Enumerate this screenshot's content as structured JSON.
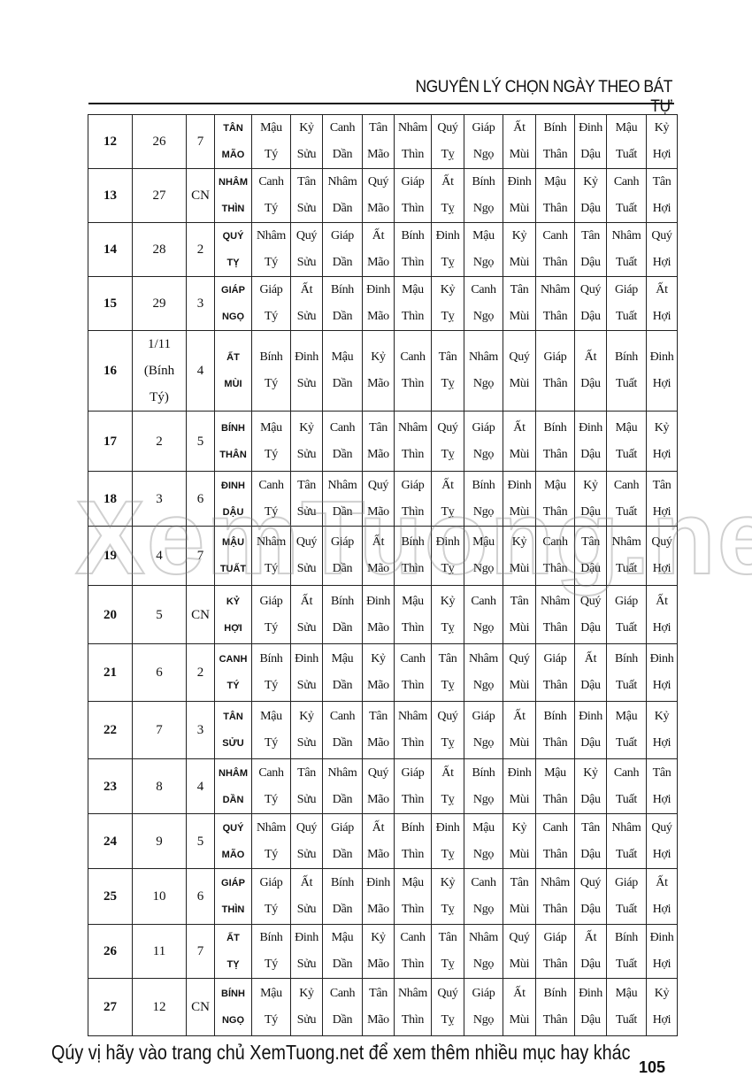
{
  "header": {
    "title": "NGUYÊN LÝ CHỌN NGÀY THEO BÁT TỰ"
  },
  "branches": [
    "Tý",
    "Sửu",
    "Dần",
    "Mão",
    "Thìn",
    "Tỵ",
    "Ngọ",
    "Mùi",
    "Thân",
    "Dậu",
    "Tuất",
    "Hợi"
  ],
  "rows": [
    {
      "day": "12",
      "lunar": "26",
      "weekday": "7",
      "can": "TÂN",
      "chi": "MÃO",
      "stems": [
        "Mậu",
        "Kỷ",
        "Canh",
        "Tân",
        "Nhâm",
        "Quý",
        "Giáp",
        "Ất",
        "Bính",
        "Đinh",
        "Mậu",
        "Kỷ"
      ]
    },
    {
      "day": "13",
      "lunar": "27",
      "weekday": "CN",
      "can": "NHÂM",
      "chi": "THÌN",
      "stems": [
        "Canh",
        "Tân",
        "Nhâm",
        "Quý",
        "Giáp",
        "Ất",
        "Bính",
        "Đinh",
        "Mậu",
        "Kỷ",
        "Canh",
        "Tân"
      ]
    },
    {
      "day": "14",
      "lunar": "28",
      "weekday": "2",
      "can": "QUÝ",
      "chi": "TỴ",
      "stems": [
        "Nhâm",
        "Quý",
        "Giáp",
        "Ất",
        "Bính",
        "Đinh",
        "Mậu",
        "Kỷ",
        "Canh",
        "Tân",
        "Nhâm",
        "Quý"
      ]
    },
    {
      "day": "15",
      "lunar": "29",
      "weekday": "3",
      "can": "GIÁP",
      "chi": "NGỌ",
      "stems": [
        "Giáp",
        "Ất",
        "Bính",
        "Đinh",
        "Mậu",
        "Kỷ",
        "Canh",
        "Tân",
        "Nhâm",
        "Quý",
        "Giáp",
        "Ất"
      ]
    },
    {
      "day": "16",
      "lunar": "1/11",
      "lunar2": "(Bính",
      "lunar3": "Tý)",
      "weekday": "4",
      "can": "ẤT",
      "chi": "MÙI",
      "stems": [
        "Bính",
        "Đinh",
        "Mậu",
        "Kỷ",
        "Canh",
        "Tân",
        "Nhâm",
        "Quý",
        "Giáp",
        "Ất",
        "Bính",
        "Đinh"
      ]
    },
    {
      "day": "17",
      "lunar": "2",
      "weekday": "5",
      "can": "BÍNH",
      "chi": "THÂN",
      "stems": [
        "Mậu",
        "Kỷ",
        "Canh",
        "Tân",
        "Nhâm",
        "Quý",
        "Giáp",
        "Ất",
        "Bính",
        "Đinh",
        "Mậu",
        "Kỷ"
      ]
    },
    {
      "day": "18",
      "lunar": "3",
      "weekday": "6",
      "can": "ĐINH",
      "chi": "DẬU",
      "stems": [
        "Canh",
        "Tân",
        "Nhâm",
        "Quý",
        "Giáp",
        "Ất",
        "Bính",
        "Đinh",
        "Mậu",
        "Kỷ",
        "Canh",
        "Tân"
      ]
    },
    {
      "day": "19",
      "lunar": "4",
      "weekday": "7",
      "can": "MẬU",
      "chi": "TUẤT",
      "stems": [
        "Nhâm",
        "Quý",
        "Giáp",
        "Ất",
        "Bính",
        "Đinh",
        "Mậu",
        "Kỷ",
        "Canh",
        "Tân",
        "Nhâm",
        "Quý"
      ]
    },
    {
      "day": "20",
      "lunar": "5",
      "weekday": "CN",
      "can": "KỶ",
      "chi": "HỢI",
      "stems": [
        "Giáp",
        "Ất",
        "Bính",
        "Đinh",
        "Mậu",
        "Kỷ",
        "Canh",
        "Tân",
        "Nhâm",
        "Quý",
        "Giáp",
        "Ất"
      ]
    },
    {
      "day": "21",
      "lunar": "6",
      "weekday": "2",
      "can": "CANH",
      "chi": "TÝ",
      "stems": [
        "Bính",
        "Đinh",
        "Mậu",
        "Kỷ",
        "Canh",
        "Tân",
        "Nhâm",
        "Quý",
        "Giáp",
        "Ất",
        "Bính",
        "Đinh"
      ]
    },
    {
      "day": "22",
      "lunar": "7",
      "weekday": "3",
      "can": "TÂN",
      "chi": "SỬU",
      "stems": [
        "Mậu",
        "Kỷ",
        "Canh",
        "Tân",
        "Nhâm",
        "Quý",
        "Giáp",
        "Ất",
        "Bính",
        "Đinh",
        "Mậu",
        "Kỷ"
      ]
    },
    {
      "day": "23",
      "lunar": "8",
      "weekday": "4",
      "can": "NHÂM",
      "chi": "DẦN",
      "stems": [
        "Canh",
        "Tân",
        "Nhâm",
        "Quý",
        "Giáp",
        "Ất",
        "Bính",
        "Đinh",
        "Mậu",
        "Kỷ",
        "Canh",
        "Tân"
      ]
    },
    {
      "day": "24",
      "lunar": "9",
      "weekday": "5",
      "can": "QUÝ",
      "chi": "MÃO",
      "stems": [
        "Nhâm",
        "Quý",
        "Giáp",
        "Ất",
        "Bính",
        "Đinh",
        "Mậu",
        "Kỷ",
        "Canh",
        "Tân",
        "Nhâm",
        "Quý"
      ]
    },
    {
      "day": "25",
      "lunar": "10",
      "weekday": "6",
      "can": "GIÁP",
      "chi": "THÌN",
      "stems": [
        "Giáp",
        "Ất",
        "Bính",
        "Đinh",
        "Mậu",
        "Kỷ",
        "Canh",
        "Tân",
        "Nhâm",
        "Quý",
        "Giáp",
        "Ất"
      ]
    },
    {
      "day": "26",
      "lunar": "11",
      "weekday": "7",
      "can": "ẤT",
      "chi": "TỴ",
      "stems": [
        "Bính",
        "Đinh",
        "Mậu",
        "Kỷ",
        "Canh",
        "Tân",
        "Nhâm",
        "Quý",
        "Giáp",
        "Ất",
        "Bính",
        "Đinh"
      ]
    },
    {
      "day": "27",
      "lunar": "12",
      "weekday": "CN",
      "can": "BÍNH",
      "chi": "NGỌ",
      "stems": [
        "Mậu",
        "Kỷ",
        "Canh",
        "Tân",
        "Nhâm",
        "Quý",
        "Giáp",
        "Ất",
        "Bính",
        "Đinh",
        "Mậu",
        "Kỷ"
      ]
    }
  ],
  "watermark": "XemTuong.net",
  "footer": {
    "text": "Qúy vị hãy vào trang chủ XemTuong.net để xem thêm nhiều mục hay khác",
    "page_number": "105"
  }
}
